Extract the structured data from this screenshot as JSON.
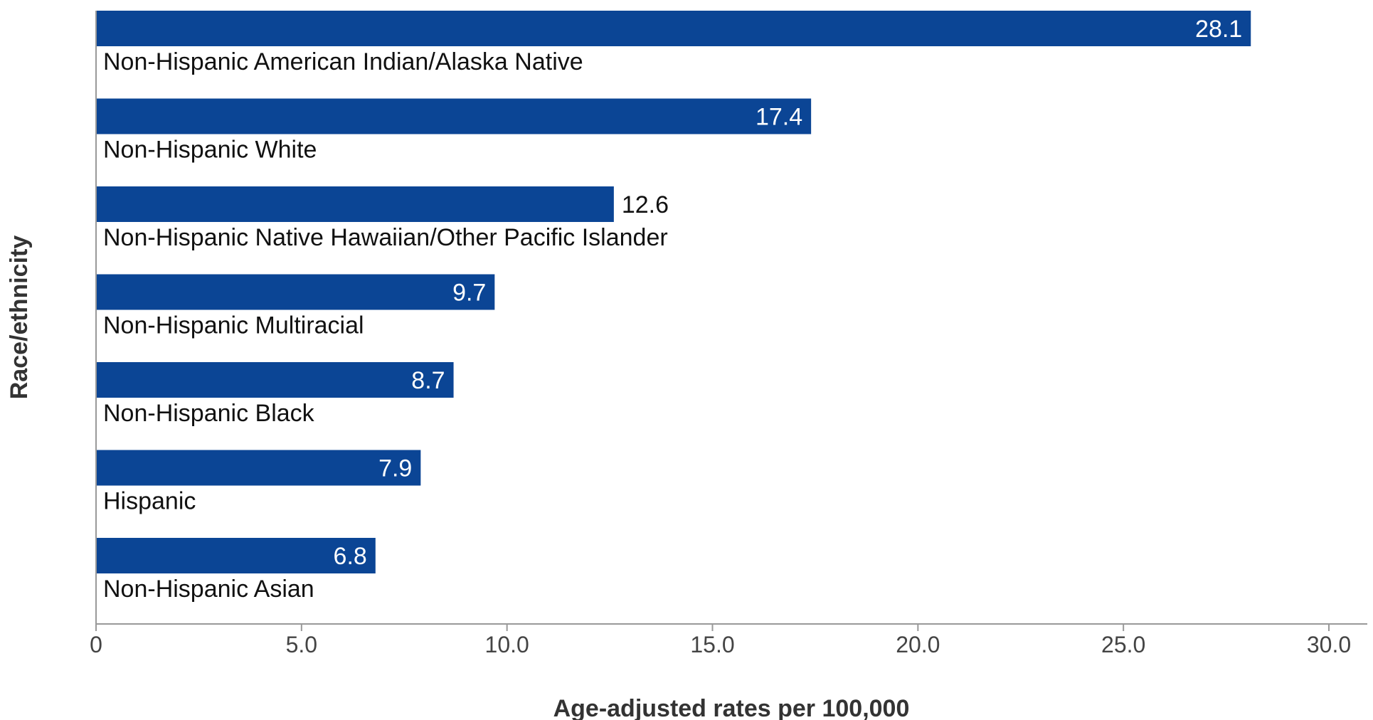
{
  "chart_data": {
    "type": "bar",
    "orientation": "horizontal",
    "categories": [
      "Non-Hispanic American Indian/Alaska Native",
      "Non-Hispanic White",
      "Non-Hispanic Native Hawaiian/Other Pacific Islander",
      "Non-Hispanic Multiracial",
      "Non-Hispanic Black",
      "Hispanic",
      "Non-Hispanic Asian"
    ],
    "values": [
      28.1,
      17.4,
      12.6,
      9.7,
      8.7,
      7.9,
      6.8
    ],
    "value_labels": [
      "28.1",
      "17.4",
      "12.6",
      "9.7",
      "8.7",
      "7.9",
      "6.8"
    ],
    "xlabel": "Age-adjusted rates per 100,000",
    "ylabel": "Race/ethnicity",
    "xlim": [
      0,
      30
    ],
    "x_ticks": [
      0,
      5,
      10,
      15,
      20,
      25,
      30
    ],
    "x_tick_labels": [
      "0",
      "5.0",
      "10.0",
      "15.0",
      "20.0",
      "25.0",
      "30.0"
    ],
    "grid": false,
    "colors": {
      "bar": "#0b4595",
      "value_label_inside": "#ffffff",
      "value_label_outside": "#111111",
      "axis": "#999999"
    }
  }
}
